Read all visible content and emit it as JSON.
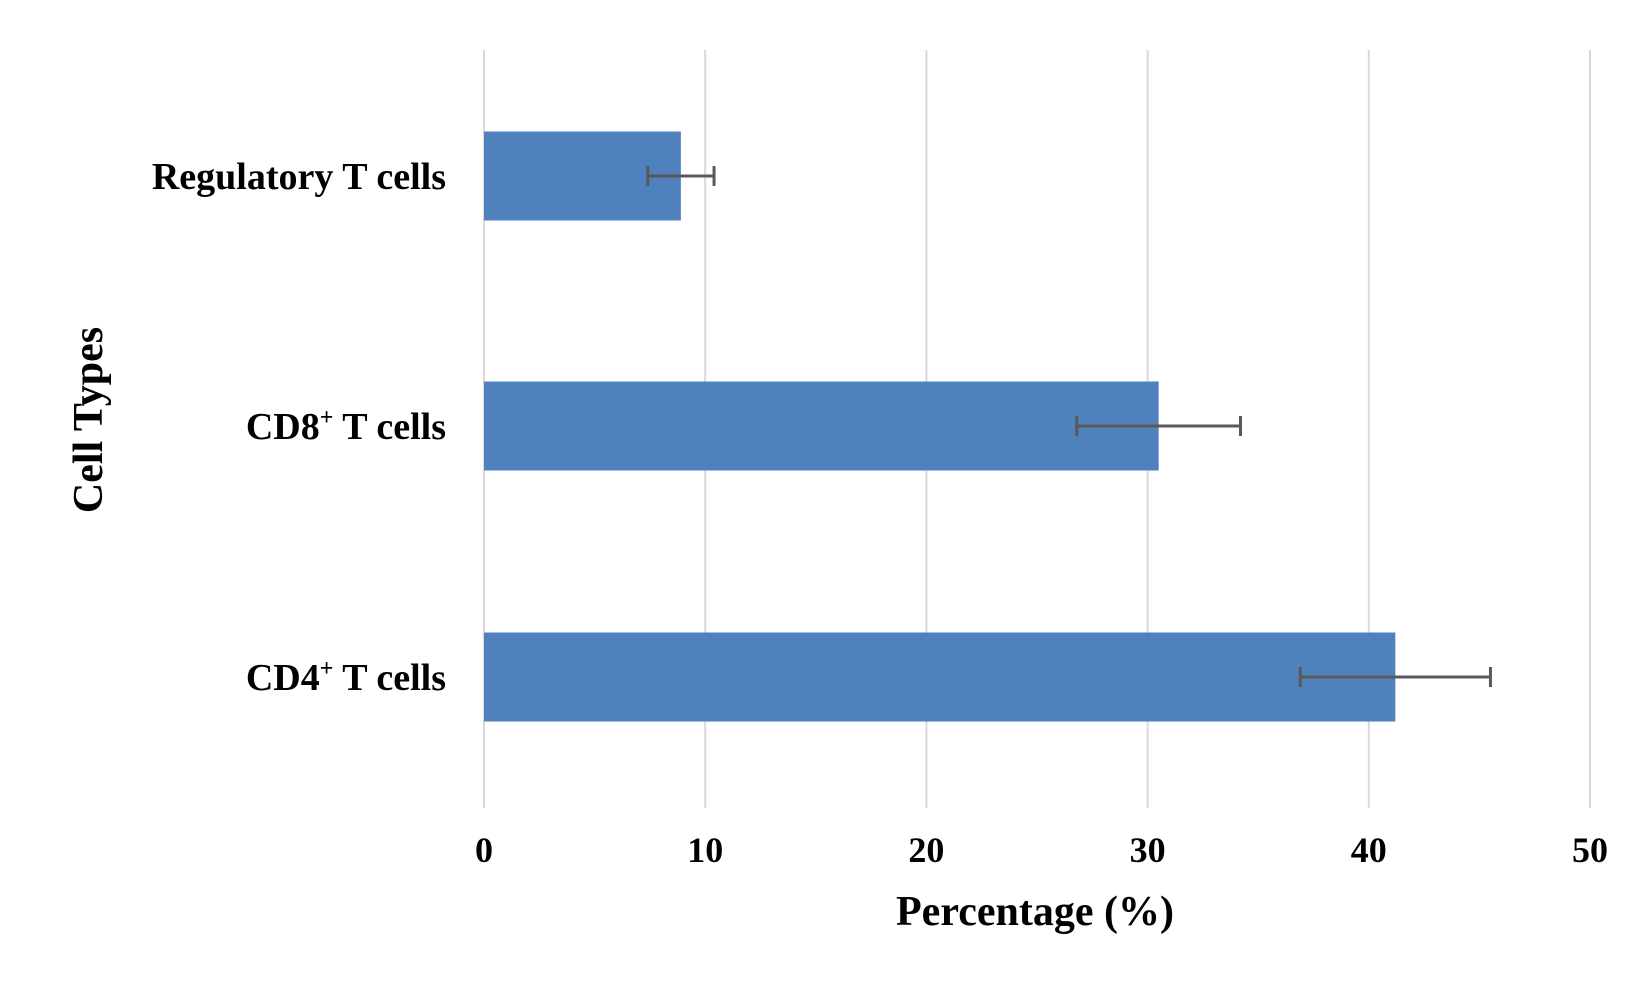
{
  "chart_data": {
    "type": "bar",
    "orientation": "horizontal",
    "categories": [
      {
        "main": "Regulatory T cells",
        "sup": "",
        "rest": ""
      },
      {
        "main": "CD8",
        "sup": "+",
        "rest": " T cells"
      },
      {
        "main": "CD4",
        "sup": "+",
        "rest": " T cells"
      }
    ],
    "values": [
      8.9,
      30.5,
      41.2
    ],
    "error": [
      [
        7.4,
        10.4
      ],
      [
        26.8,
        34.2
      ],
      [
        36.9,
        45.5
      ]
    ],
    "xlabel": "Percentage (%)",
    "ylabel": "Cell Types",
    "xlim": [
      0,
      50
    ],
    "xticks": [
      "0",
      "10",
      "20",
      "30",
      "40",
      "50"
    ],
    "grid": "vertical",
    "legend": "none",
    "colors": {
      "bar": "#4f81bd",
      "error": "#595959",
      "grid": "#d9d9d9"
    }
  }
}
